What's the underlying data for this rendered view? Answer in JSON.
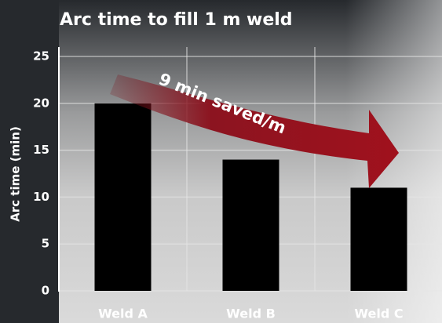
{
  "chart_data": {
    "type": "bar",
    "title": "Arc time to fill 1 m weld",
    "y_label": "Arc time (min)",
    "annotation": "9 min saved/m",
    "categories": [
      "Weld A",
      "Weld B",
      "Weld C"
    ],
    "values": [
      20,
      14,
      11
    ],
    "color": "#000000",
    "ylim": [
      0,
      25
    ],
    "yticks": [
      0,
      5,
      10,
      15,
      20,
      25
    ],
    "grid": true
  }
}
